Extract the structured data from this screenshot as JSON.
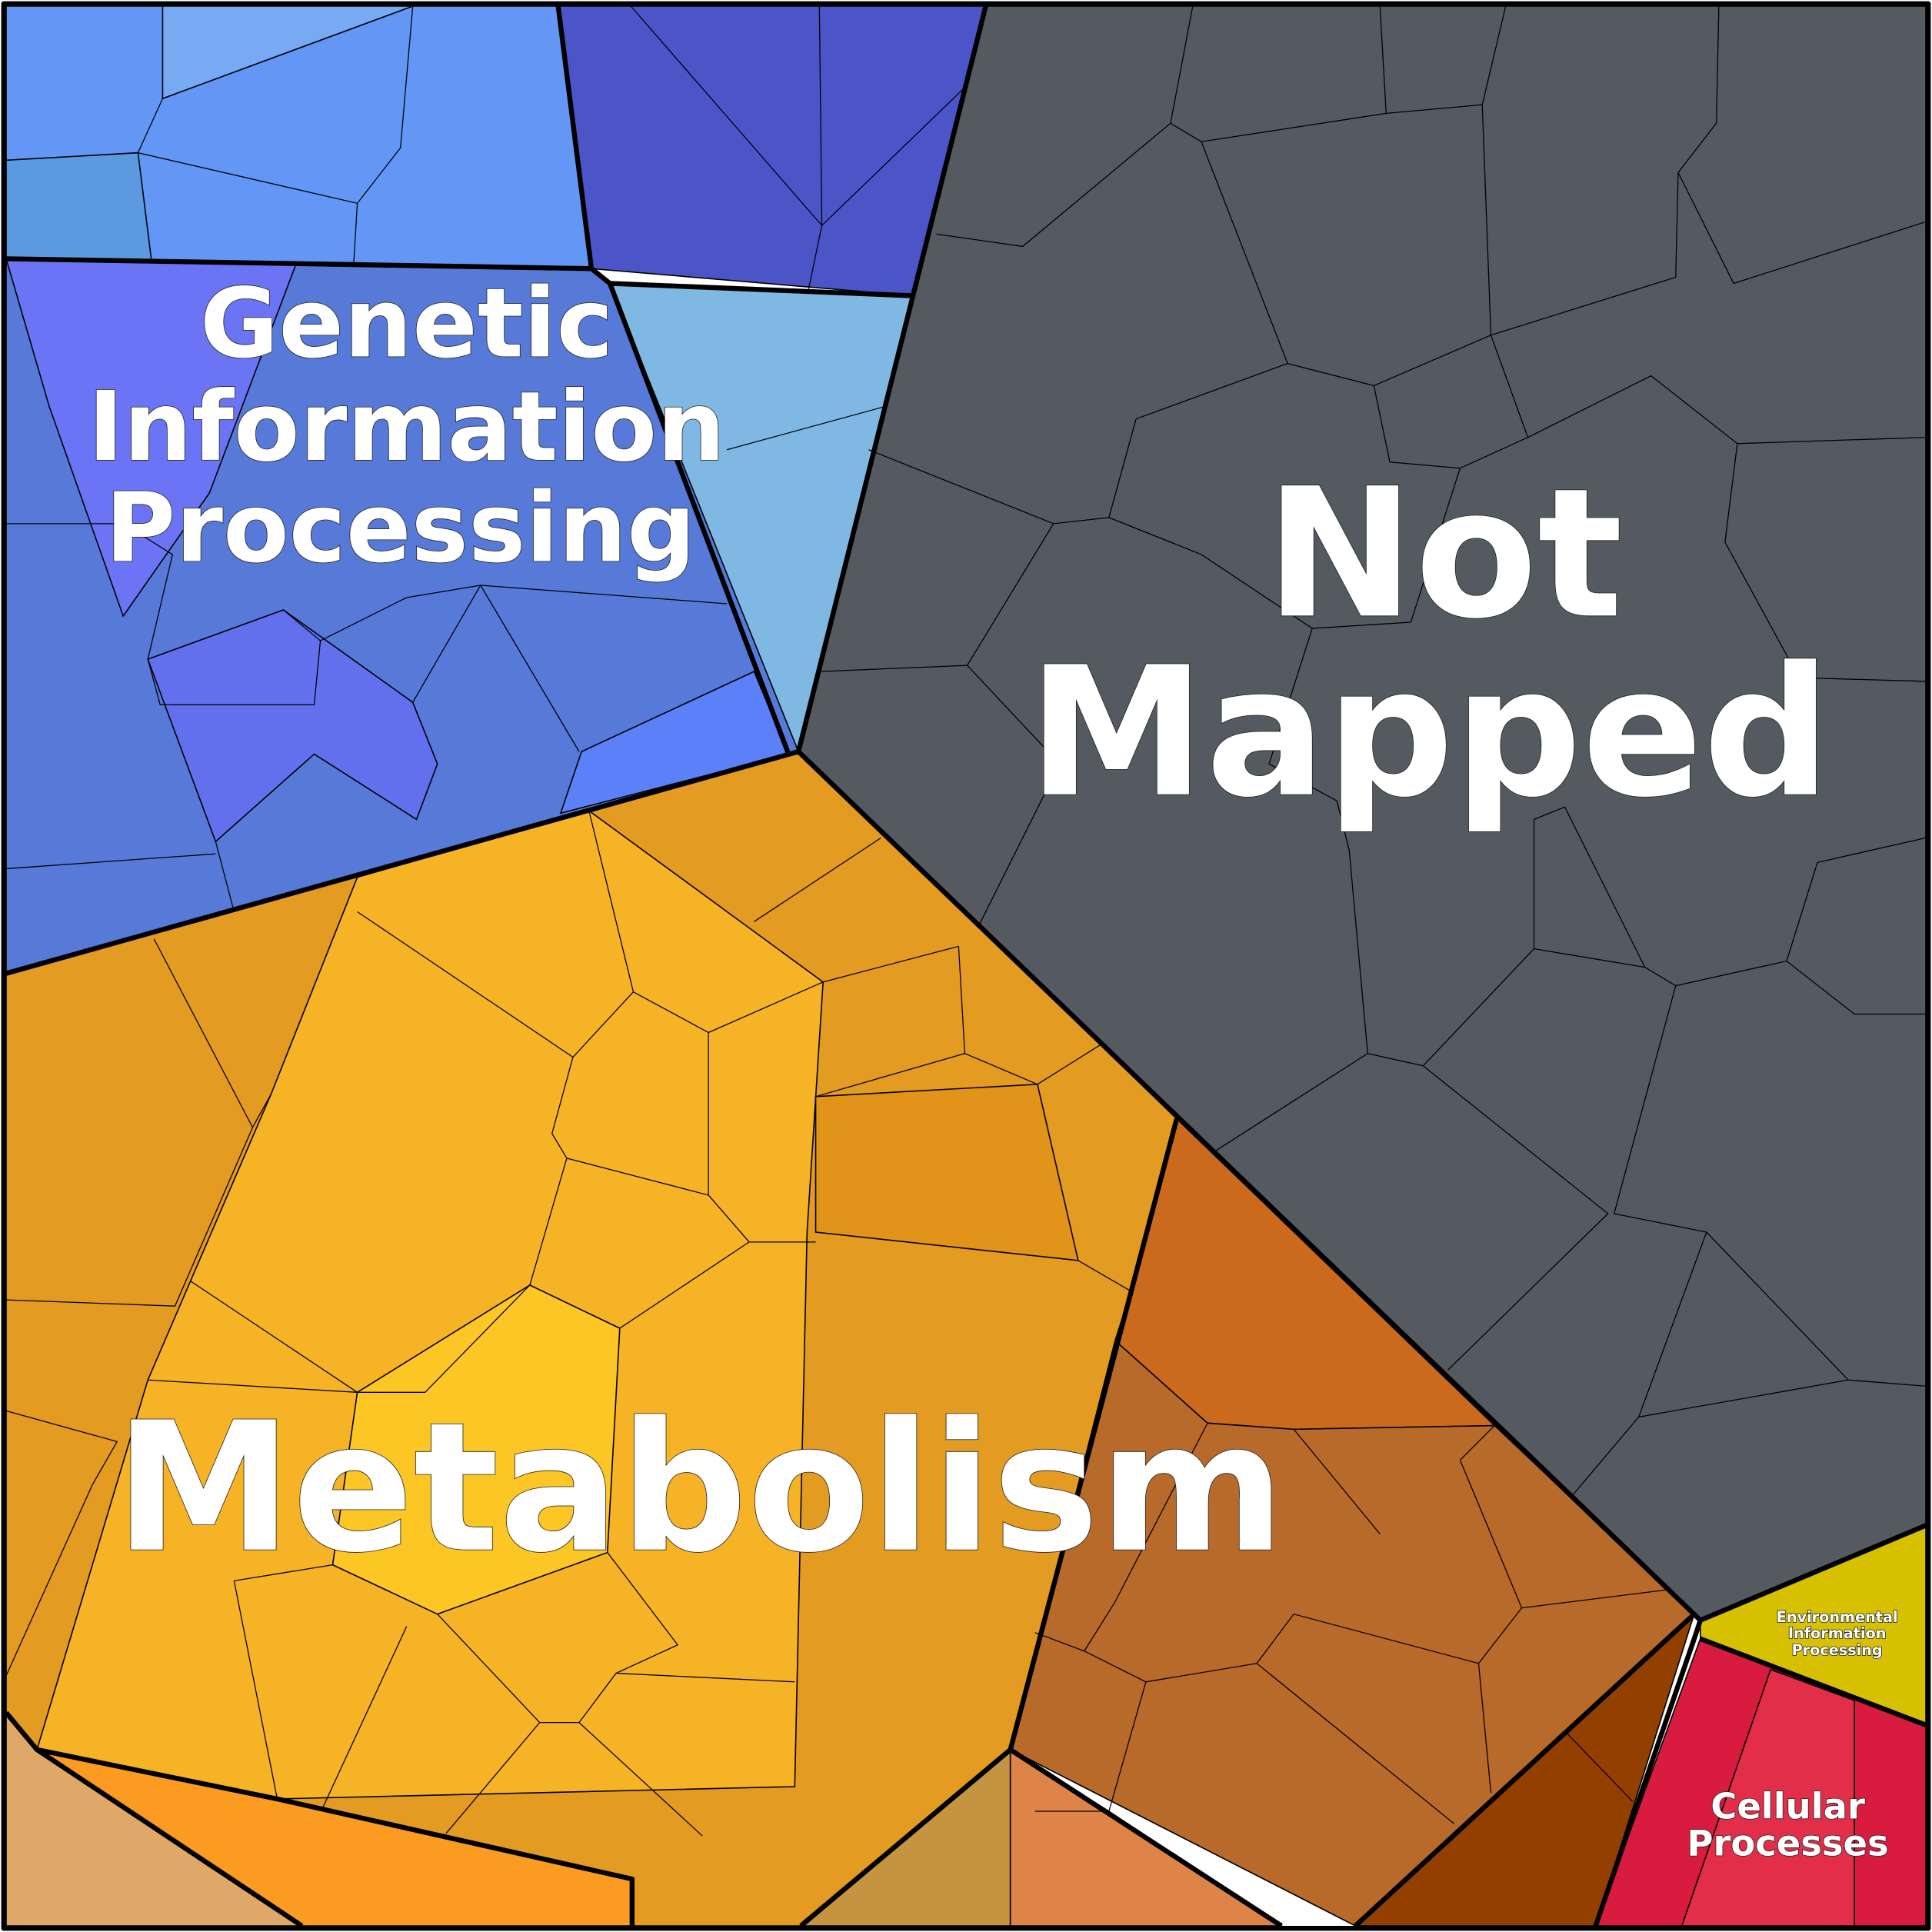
{
  "regions": [
    {
      "label": [
        "Genetic",
        "Information",
        "Processing"
      ]
    },
    {
      "label": [
        "Not",
        "Mapped"
      ]
    },
    {
      "label": [
        "Metabolism"
      ]
    },
    {
      "label": [
        "Environmental",
        "Information",
        "Processing"
      ]
    },
    {
      "label": [
        "Cellular",
        "Processes"
      ]
    }
  ]
}
